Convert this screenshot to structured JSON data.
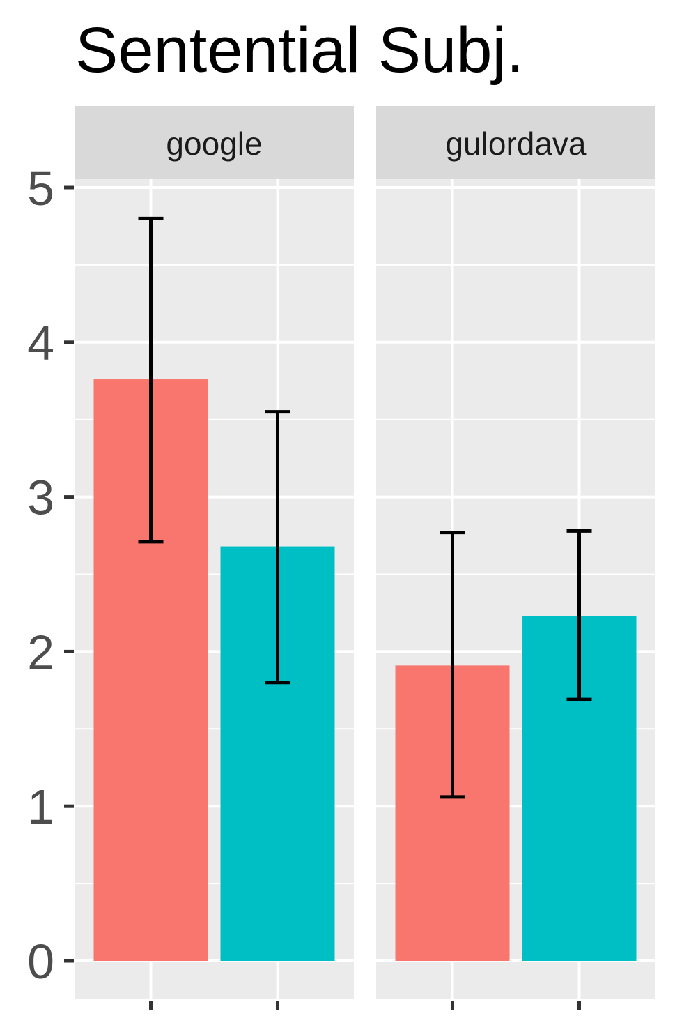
{
  "chart_data": {
    "type": "bar",
    "title": "Sentential Subj.",
    "xlabel": "",
    "ylabel": "",
    "ylim": [
      0,
      5.2
    ],
    "y_ticks": [
      0,
      1,
      2,
      3,
      4,
      5
    ],
    "y_tick_labels": [
      "0",
      "1",
      "2",
      "3",
      "4",
      "5"
    ],
    "grid": true,
    "legend": "none",
    "colors": [
      "#F8766D",
      "#00BFC4"
    ],
    "panel_background": "#EBEBEB",
    "strip_background": "#D9D9D9",
    "panels": [
      {
        "label": "google",
        "bars": [
          {
            "value": 3.76,
            "err_low": 2.71,
            "err_high": 4.8
          },
          {
            "value": 2.68,
            "err_low": 1.8,
            "err_high": 3.55
          }
        ]
      },
      {
        "label": "gulordava",
        "bars": [
          {
            "value": 1.91,
            "err_low": 1.06,
            "err_high": 2.77
          },
          {
            "value": 2.23,
            "err_low": 1.69,
            "err_high": 2.78
          }
        ]
      }
    ]
  }
}
